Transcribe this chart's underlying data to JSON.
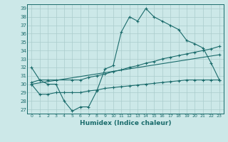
{
  "title": "",
  "xlabel": "Humidex (Indice chaleur)",
  "bg_color": "#cce8e8",
  "line_color": "#1a6b6b",
  "grid_color": "#aacccc",
  "ylim": [
    26.5,
    39.5
  ],
  "xlim": [
    -0.5,
    23.5
  ],
  "yticks": [
    27,
    28,
    29,
    30,
    31,
    32,
    33,
    34,
    35,
    36,
    37,
    38,
    39
  ],
  "xticks": [
    0,
    1,
    2,
    3,
    4,
    5,
    6,
    7,
    8,
    9,
    10,
    11,
    12,
    13,
    14,
    15,
    16,
    17,
    18,
    19,
    20,
    21,
    22,
    23
  ],
  "xtick_labels": [
    "0",
    "1",
    "2",
    "3",
    "4",
    "5",
    "6",
    "7",
    "8",
    "9",
    "10",
    "11",
    "12",
    "13",
    "14",
    "15",
    "16",
    "17",
    "18",
    "19",
    "20",
    "21",
    "22",
    "23"
  ],
  "line1_x": [
    0,
    1,
    2,
    3,
    4,
    5,
    6,
    7,
    8,
    9,
    10,
    11,
    12,
    13,
    14,
    15,
    16,
    17,
    18,
    19,
    20,
    21,
    22,
    23
  ],
  "line1_y": [
    32,
    30.5,
    30,
    30,
    28,
    26.8,
    27.3,
    27.3,
    29.2,
    31.8,
    32.2,
    36.2,
    38,
    37.5,
    39,
    38,
    37.5,
    37,
    36.5,
    35.2,
    34.8,
    34.3,
    32.5,
    30.5
  ],
  "line2_x": [
    0,
    1,
    2,
    3,
    5,
    6,
    7,
    8,
    9,
    10,
    11,
    12,
    13,
    14,
    15,
    16,
    17,
    18,
    19,
    20,
    21,
    22,
    23
  ],
  "line2_y": [
    30.2,
    30.5,
    30.5,
    30.5,
    30.5,
    30.5,
    30.8,
    31.0,
    31.2,
    31.5,
    31.7,
    32.0,
    32.2,
    32.5,
    32.7,
    33.0,
    33.2,
    33.4,
    33.6,
    33.8,
    34.0,
    34.2,
    34.5
  ],
  "line3_x": [
    0,
    23
  ],
  "line3_y": [
    30.0,
    33.5
  ],
  "line4_x": [
    0,
    1,
    2,
    3,
    4,
    5,
    6,
    7,
    8,
    9,
    10,
    11,
    12,
    13,
    14,
    15,
    16,
    17,
    18,
    19,
    20,
    21,
    22,
    23
  ],
  "line4_y": [
    30.0,
    28.8,
    28.8,
    29.0,
    29.0,
    29.0,
    29.0,
    29.2,
    29.3,
    29.5,
    29.6,
    29.7,
    29.8,
    29.9,
    30.0,
    30.1,
    30.2,
    30.3,
    30.4,
    30.5,
    30.5,
    30.5,
    30.5,
    30.5
  ]
}
